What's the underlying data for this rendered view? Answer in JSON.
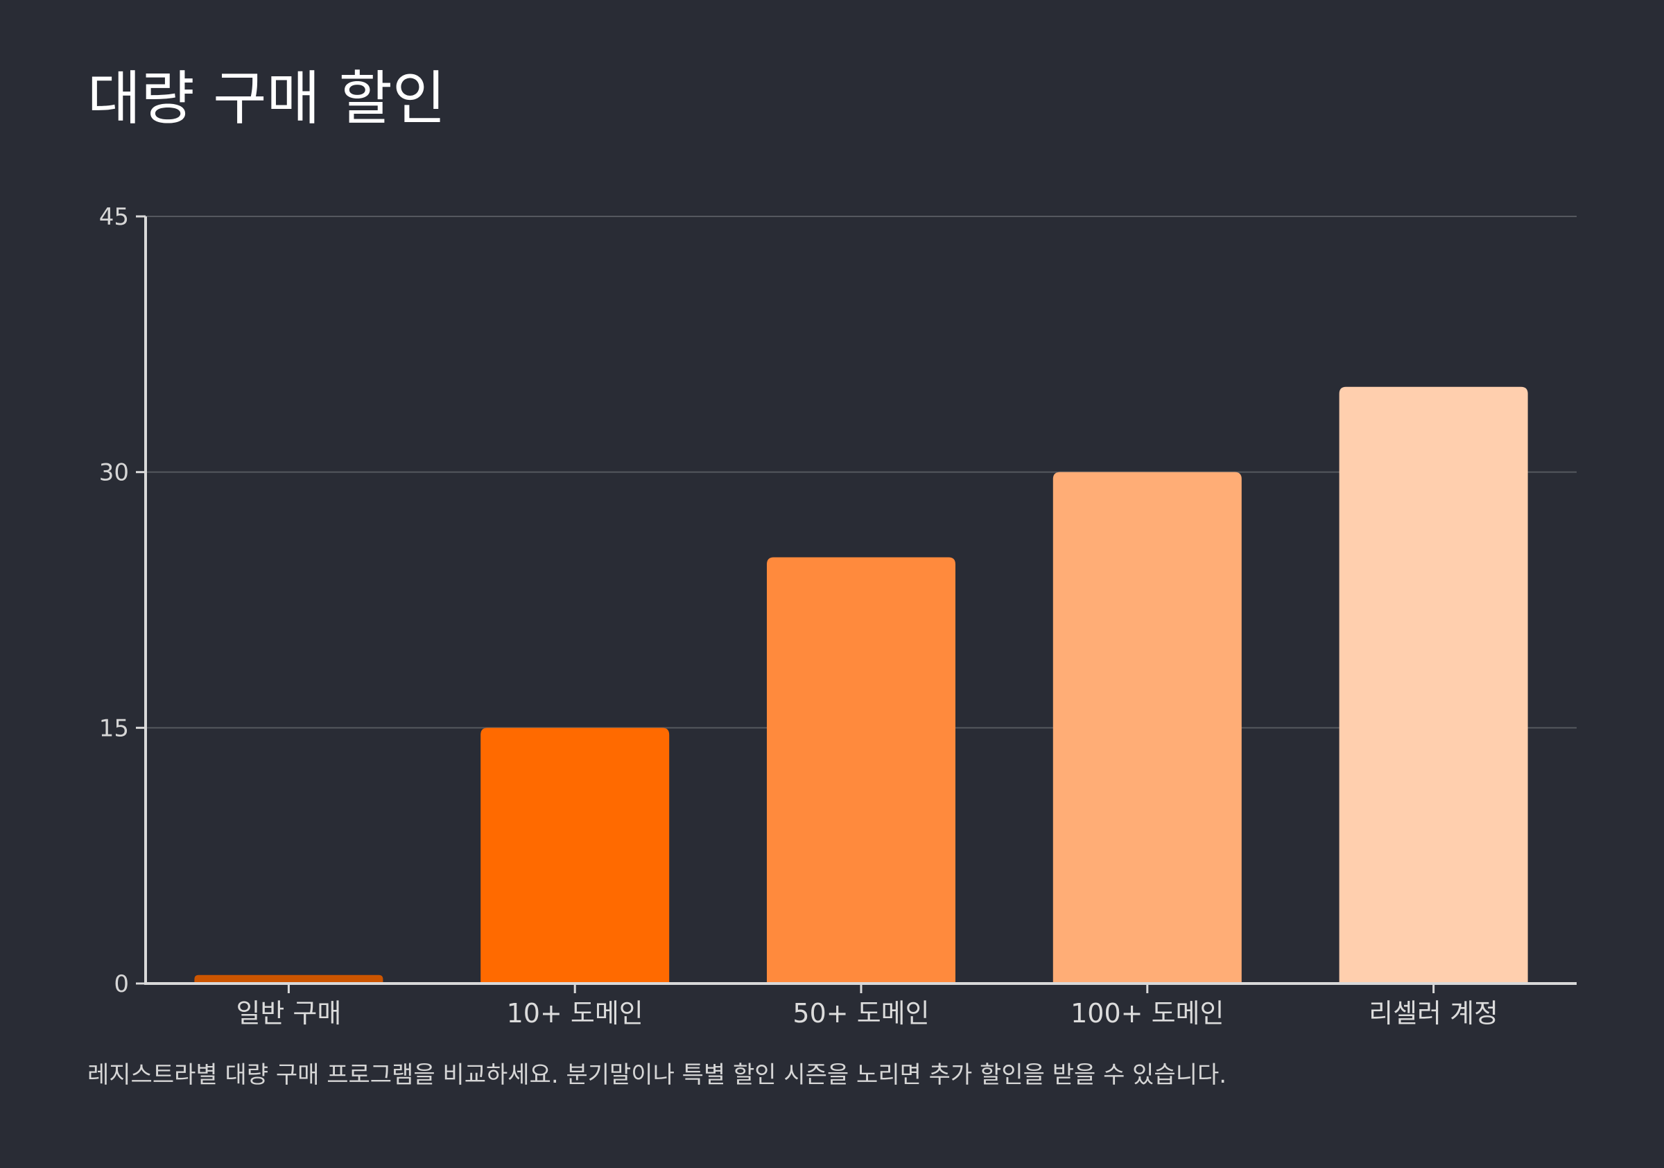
{
  "chart_data": {
    "type": "bar",
    "title": "대량 구매 할인",
    "caption": "레지스트라별 대량 구매 프로그램을 비교하세요. 분기말이나 특별 할인 시즌을 노리면 추가 할인을 받을 수 있습니다.",
    "categories": [
      "일반 구매",
      "10+ 도메인",
      "50+ 도메인",
      "100+ 도메인",
      "리셀러 계정"
    ],
    "values": [
      0.5,
      15,
      25,
      30,
      35
    ],
    "yticks": [
      0,
      15,
      30,
      45
    ],
    "ylim": [
      0,
      45
    ],
    "grid": true,
    "xlabel": "",
    "ylabel": "",
    "colors": [
      "#cc5500",
      "#ff6a00",
      "#ff8a3d",
      "#ffad76",
      "#ffcfae"
    ]
  },
  "theme": {
    "background": "#292c35",
    "axis_color": "#d9d9d9",
    "grid_color": "#55585f"
  }
}
